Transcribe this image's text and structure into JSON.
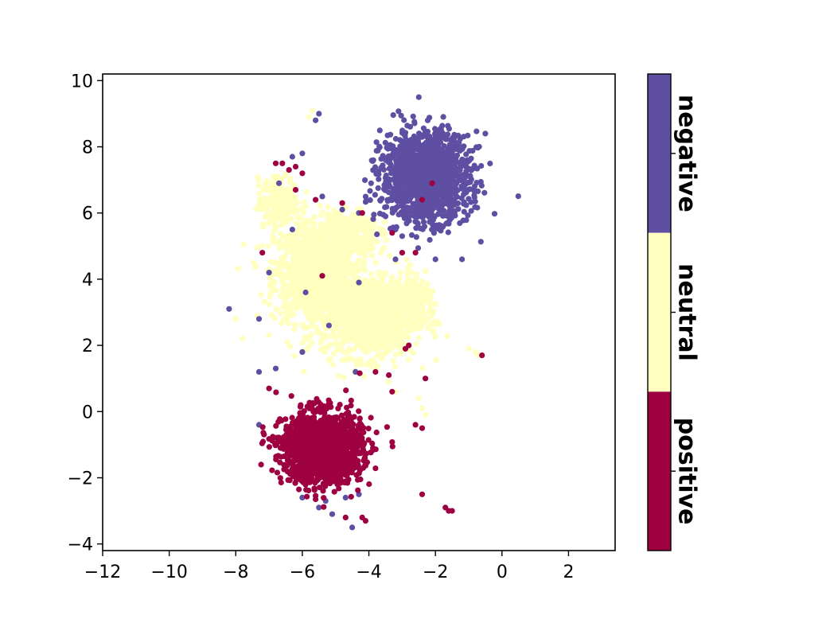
{
  "chart_data": {
    "type": "scatter",
    "title": "",
    "xlabel": "",
    "ylabel": "",
    "xlim": [
      -12,
      3.4
    ],
    "ylim": [
      -4.2,
      10.2
    ],
    "xticks": [
      -12,
      -10,
      -8,
      -6,
      -4,
      -2,
      0,
      2
    ],
    "yticks": [
      -4,
      -2,
      0,
      2,
      4,
      6,
      8,
      10
    ],
    "xtick_labels": [
      "−12",
      "−10",
      "−8",
      "−6",
      "−4",
      "−2",
      "0",
      "2"
    ],
    "ytick_labels": [
      "−4",
      "−2",
      "0",
      "2",
      "4",
      "6",
      "8",
      "10"
    ],
    "grid": false,
    "colorbar": {
      "placement": "right",
      "categories": [
        {
          "label": "negative",
          "color": "#5e4fa2"
        },
        {
          "label": "neutral",
          "color": "#ffffbf"
        },
        {
          "label": "positive",
          "color": "#9e0142"
        }
      ]
    },
    "series": [
      {
        "category": "negative",
        "color": "#5e4fa2",
        "clusters": [
          {
            "cx": -2.3,
            "cy": 7.1,
            "sx": 1.05,
            "sy": 1.05,
            "n": 1500
          }
        ],
        "points": [
          [
            -2.5,
            9.5
          ],
          [
            -2.0,
            4.6
          ],
          [
            -3.2,
            4.6
          ],
          [
            -1.2,
            4.6
          ],
          [
            -0.5,
            8.4
          ],
          [
            -6.7,
            6.9
          ],
          [
            -6.3,
            7.7
          ],
          [
            -6.0,
            7.8
          ],
          [
            -5.6,
            8.8
          ],
          [
            -5.5,
            9.0
          ],
          [
            -7.3,
            2.8
          ],
          [
            -8.2,
            3.1
          ],
          [
            -7.0,
            4.2
          ],
          [
            -6.0,
            1.8
          ],
          [
            -6.8,
            1.3
          ],
          [
            -7.3,
            1.2
          ],
          [
            -4.4,
            1.2
          ],
          [
            -5.2,
            2.6
          ],
          [
            -5.9,
            3.6
          ],
          [
            -3.0,
            5.3
          ],
          [
            -4.5,
            -3.5
          ],
          [
            -5.1,
            -3.1
          ],
          [
            -6.0,
            -2.6
          ],
          [
            -5.3,
            -2.7
          ],
          [
            -5.5,
            -2.9
          ],
          [
            -4.7,
            -2.6
          ],
          [
            -4.3,
            -2.5
          ],
          [
            -7.3,
            -0.4
          ],
          [
            -6.3,
            5.5
          ],
          [
            -5.4,
            6.5
          ],
          [
            -4.8,
            6.1
          ],
          [
            -4.3,
            6.0
          ],
          [
            -4.3,
            3.9
          ],
          [
            -3.5,
            5.9
          ],
          [
            -3.2,
            5.5
          ]
        ]
      },
      {
        "category": "neutral",
        "color": "#ffffbf",
        "clusters": [
          {
            "cx": -5.6,
            "cy": 4.2,
            "sx": 1.0,
            "sy": 1.2,
            "n": 1100
          },
          {
            "cx": -4.0,
            "cy": 2.9,
            "sx": 1.15,
            "sy": 1.0,
            "n": 1200
          },
          {
            "cx": -6.7,
            "cy": 6.3,
            "sx": 0.5,
            "sy": 0.6,
            "n": 220
          },
          {
            "cx": -4.6,
            "cy": 5.4,
            "sx": 0.7,
            "sy": 0.6,
            "n": 250
          },
          {
            "cx": -2.6,
            "cy": 3.4,
            "sx": 0.6,
            "sy": 0.5,
            "n": 150
          }
        ],
        "points": [
          [
            -5.7,
            9.1
          ],
          [
            -5.8,
            8.9
          ],
          [
            -3.4,
            0.9
          ],
          [
            -2.5,
            0.4
          ],
          [
            -2.4,
            0.1
          ],
          [
            -2.3,
            -0.1
          ],
          [
            -0.8,
            1.8
          ],
          [
            -1.0,
            1.9
          ],
          [
            -0.7,
            1.7
          ],
          [
            -3.2,
            0.6
          ],
          [
            -8.0,
            2.8
          ],
          [
            -7.8,
            2.2
          ]
        ]
      },
      {
        "category": "positive",
        "color": "#9e0142",
        "clusters": [
          {
            "cx": -5.4,
            "cy": -1.1,
            "sx": 0.95,
            "sy": 0.85,
            "n": 1500
          }
        ],
        "points": [
          [
            -1.6,
            -3.0
          ],
          [
            -1.7,
            -2.9
          ],
          [
            -1.5,
            -3.0
          ],
          [
            -2.4,
            -2.5
          ],
          [
            -2.6,
            -0.4
          ],
          [
            -2.4,
            -0.5
          ],
          [
            -0.6,
            1.7
          ],
          [
            -3.3,
            0.6
          ],
          [
            -2.3,
            1.0
          ],
          [
            -6.8,
            7.5
          ],
          [
            -6.6,
            7.5
          ],
          [
            -6.4,
            7.3
          ],
          [
            -6.2,
            7.4
          ],
          [
            -6.0,
            7.2
          ],
          [
            -7.2,
            4.8
          ],
          [
            -6.2,
            6.7
          ],
          [
            -5.6,
            6.4
          ],
          [
            -4.8,
            6.3
          ],
          [
            -4.2,
            6.0
          ],
          [
            -2.1,
            6.9
          ],
          [
            -2.4,
            6.4
          ],
          [
            -3.3,
            5.4
          ],
          [
            -5.4,
            4.1
          ],
          [
            -2.8,
            2.0
          ],
          [
            -2.9,
            1.9
          ],
          [
            -3.4,
            1.1
          ],
          [
            -4.7,
            -3.2
          ],
          [
            -4.1,
            -3.3
          ],
          [
            -4.2,
            -3.2
          ],
          [
            -3.8,
            1.2
          ],
          [
            -7.0,
            0.7
          ],
          [
            -3.0,
            4.8
          ],
          [
            -2.6,
            4.8
          ]
        ]
      }
    ]
  }
}
